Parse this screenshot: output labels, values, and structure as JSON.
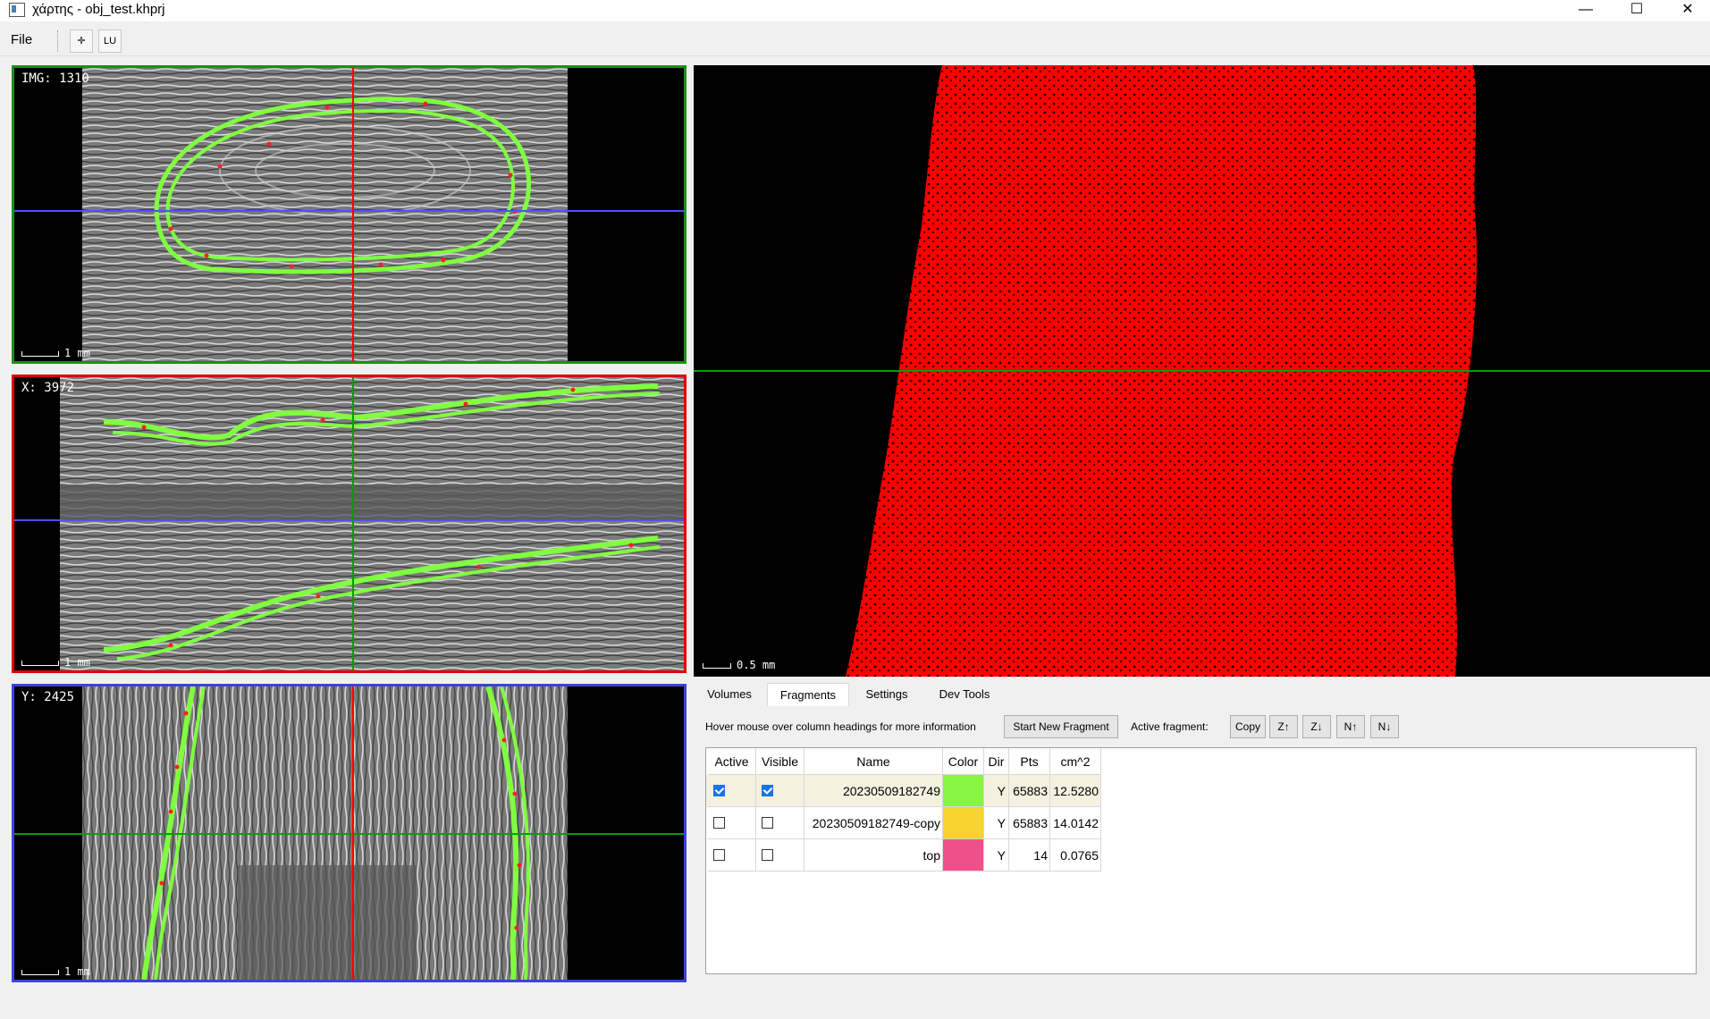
{
  "window": {
    "title": "χάρτης - obj_test.khprj",
    "minimize": "—",
    "maximize": "☐",
    "close": "✕"
  },
  "menubar": {
    "file": "File",
    "tools": [
      {
        "name": "crosshair-tool",
        "label": "✛"
      },
      {
        "name": "lu-tool",
        "label": "LU"
      }
    ]
  },
  "views": {
    "img": {
      "label": "IMG: 1310",
      "scale": "1 mm",
      "border": "#1a8f1a"
    },
    "x": {
      "label": "X: 3972",
      "scale": "1 mm",
      "border": "#e00000"
    },
    "y": {
      "label": "Y: 2425",
      "scale": "1 mm",
      "border": "#4040e0"
    },
    "main3d": {
      "scale": "0.5 mm"
    }
  },
  "colors": {
    "fragment_green": "#80ff40",
    "crosshair_red": "#ff0000",
    "crosshair_green": "#00a000",
    "crosshair_blue": "#5050ff",
    "pointcloud": "#ff0000"
  },
  "tabs": [
    "Volumes",
    "Fragments",
    "Settings",
    "Dev Tools"
  ],
  "active_tab": "Fragments",
  "fragments_panel": {
    "hint": "Hover mouse over column headings for more information",
    "start_new": "Start New Fragment",
    "active_fragment_label": "Active fragment:",
    "copy": "Copy",
    "z_up": "Z↑",
    "z_down": "Z↓",
    "n_up": "N↑",
    "n_down": "N↓"
  },
  "table": {
    "headers": [
      "Active",
      "Visible",
      "Name",
      "Color",
      "Dir",
      "Pts",
      "cm^2"
    ],
    "rows": [
      {
        "active": true,
        "visible": true,
        "name": "20230509182749",
        "color": "#88f540",
        "dir": "Y",
        "pts": "65883",
        "area": "12.5280"
      },
      {
        "active": false,
        "visible": false,
        "name": "20230509182749-copy",
        "color": "#f7d32e",
        "dir": "Y",
        "pts": "65883",
        "area": "14.0142"
      },
      {
        "active": false,
        "visible": false,
        "name": "top",
        "color": "#f0508a",
        "dir": "Y",
        "pts": "14",
        "area": "0.0765"
      }
    ]
  }
}
